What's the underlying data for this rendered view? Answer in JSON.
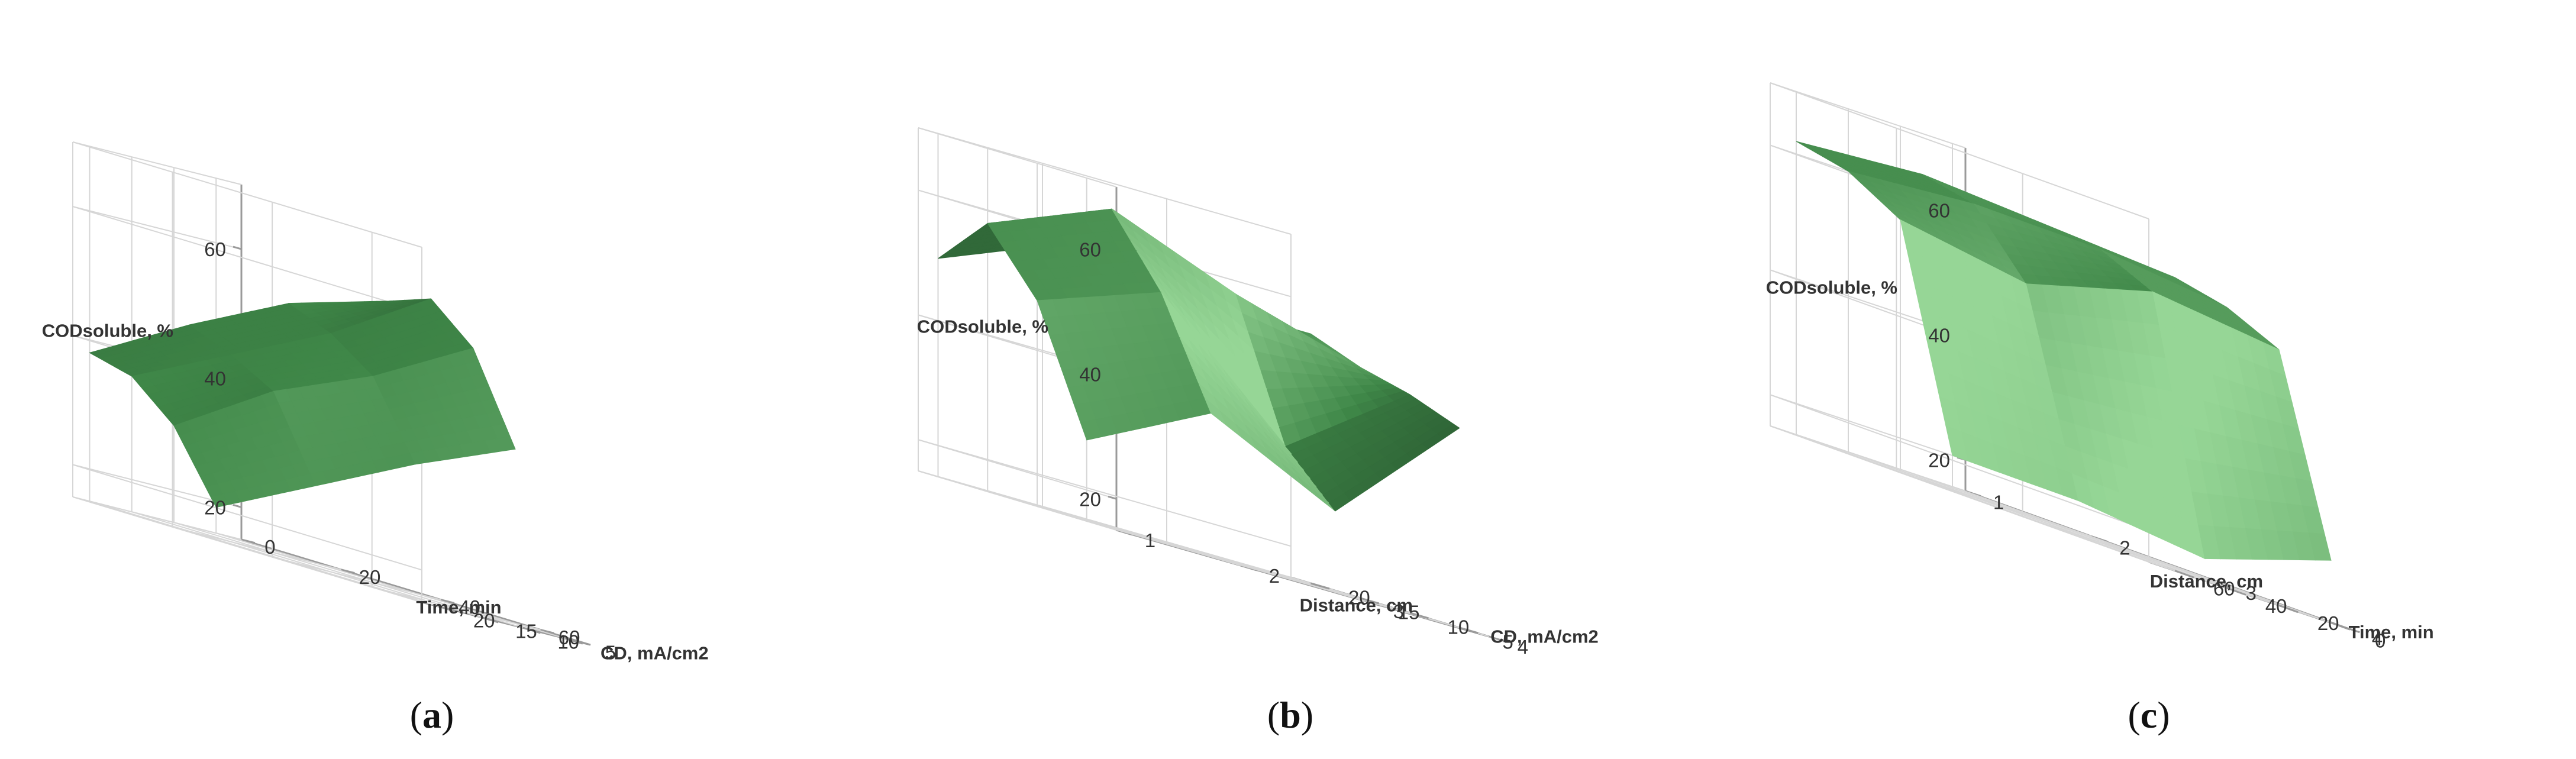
{
  "chart_data": [
    {
      "type": "surface",
      "panel_label": "a",
      "zlabel": "CODsoluble, %",
      "xlabel": "Time, min",
      "ylabel": "CD, mA/cm2",
      "x_ticks": [
        "0",
        "20",
        "40",
        "60"
      ],
      "y_ticks": [
        "5",
        "10",
        "15",
        "20"
      ],
      "z_ticks": [
        "20",
        "40",
        "60"
      ],
      "xlim": [
        0,
        70
      ],
      "ylim": [
        2,
        22
      ],
      "zlim": [
        15,
        70
      ],
      "x": [
        0,
        20,
        40,
        60
      ],
      "y": [
        5,
        10,
        15,
        20
      ],
      "z": [
        [
          19,
          27,
          35,
          42
        ],
        [
          30,
          40,
          47,
          56
        ],
        [
          36,
          44,
          52,
          62
        ],
        [
          38,
          47,
          55,
          60
        ]
      ],
      "colors": {
        "surface_dark": "#16301b",
        "surface_mid": "#3f8748",
        "surface_light": "#8fd08f",
        "grid": "#d6d6d6",
        "axis": "#9a9a9a"
      }
    },
    {
      "type": "surface",
      "panel_label": "b",
      "zlabel": "CODsoluble, %",
      "xlabel": "Distance, cm",
      "ylabel": "CD, mA/cm2",
      "x_ticks": [
        "1",
        "2",
        "3",
        "4"
      ],
      "y_ticks": [
        "5",
        "10",
        "15",
        "20"
      ],
      "z_ticks": [
        "20",
        "40",
        "60"
      ],
      "xlim": [
        1,
        4
      ],
      "ylim": [
        2,
        22
      ],
      "zlim": [
        15,
        70
      ],
      "x": [
        1,
        2,
        3,
        4
      ],
      "y": [
        5,
        10,
        15,
        20
      ],
      "z": [
        [
          28,
          38,
          28,
          47
        ],
        [
          48,
          55,
          36,
          50
        ],
        [
          58,
          66,
          58,
          52
        ],
        [
          50,
          58,
          55,
          55
        ]
      ],
      "colors": {
        "surface_dark": "#16301b",
        "surface_mid": "#3f8748",
        "surface_light": "#8fd08f",
        "grid": "#d6d6d6",
        "axis": "#9a9a9a"
      }
    },
    {
      "type": "surface",
      "panel_label": "c",
      "zlabel": "CODsoluble, %",
      "xlabel": "Distance, cm",
      "ylabel": "Time, min",
      "x_ticks": [
        "1",
        "2",
        "3",
        "4"
      ],
      "y_ticks": [
        "0",
        "20",
        "40",
        "60"
      ],
      "z_ticks": [
        "20",
        "40",
        "60"
      ],
      "xlim": [
        1,
        4
      ],
      "ylim": [
        -5,
        70
      ],
      "zlim": [
        15,
        70
      ],
      "x": [
        1,
        2,
        3,
        4
      ],
      "y": [
        0,
        20,
        40,
        60
      ],
      "z": [
        [
          20,
          20,
          18,
          25
        ],
        [
          55,
          52,
          58,
          56
        ],
        [
          60,
          62,
          62,
          60
        ],
        [
          62,
          64,
          63,
          62
        ]
      ],
      "colors": {
        "surface_dark": "#16301b",
        "surface_mid": "#3f8748",
        "surface_light": "#8fd08f",
        "grid": "#d6d6d6",
        "axis": "#9a9a9a"
      }
    }
  ]
}
